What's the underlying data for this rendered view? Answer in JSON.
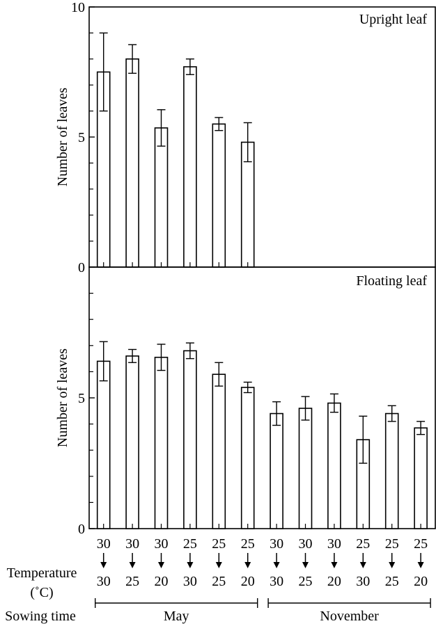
{
  "chart_data": [
    {
      "type": "bar",
      "panel": "upper",
      "title": "Upright leaf",
      "ylabel": "Number of leaves",
      "ylim": [
        0,
        10
      ],
      "yticks": [
        0,
        5,
        10
      ],
      "yticks_minor": [
        1,
        2,
        3,
        4,
        6,
        7,
        8,
        9
      ],
      "categories": [
        "30→30",
        "30→25",
        "30→20",
        "25→30",
        "25→25",
        "25→20"
      ],
      "values": [
        7.5,
        8.0,
        5.35,
        7.7,
        5.5,
        4.8
      ],
      "error": [
        1.5,
        0.55,
        0.7,
        0.3,
        0.25,
        0.75
      ]
    },
    {
      "type": "bar",
      "panel": "lower",
      "title": "Floating leaf",
      "ylabel": "Number of leaves",
      "ylim": [
        0,
        10
      ],
      "yticks": [
        0,
        5
      ],
      "yticks_minor": [
        1,
        2,
        3,
        4,
        6,
        7,
        8,
        9
      ],
      "categories": [
        "30→30",
        "30→25",
        "30→20",
        "25→30",
        "25→25",
        "25→20",
        "30→30",
        "30→25",
        "30→20",
        "25→30",
        "25→25",
        "25→20"
      ],
      "values": [
        6.4,
        6.6,
        6.55,
        6.8,
        5.9,
        5.4,
        4.4,
        4.6,
        4.8,
        3.4,
        4.4,
        3.85
      ],
      "error": [
        0.75,
        0.25,
        0.5,
        0.3,
        0.45,
        0.2,
        0.45,
        0.45,
        0.35,
        0.9,
        0.3,
        0.25
      ]
    }
  ],
  "axis": {
    "temp_from": [
      "30",
      "30",
      "30",
      "25",
      "25",
      "25",
      "30",
      "30",
      "30",
      "25",
      "25",
      "25"
    ],
    "temp_to": [
      "30",
      "25",
      "20",
      "30",
      "25",
      "20",
      "30",
      "25",
      "20",
      "30",
      "25",
      "20"
    ],
    "temperature_label": "Temperature",
    "temperature_unit": "(˚C)",
    "sowing_label": "Sowing time",
    "groups": [
      {
        "label": "May",
        "first": 0,
        "last": 5
      },
      {
        "label": "November",
        "first": 6,
        "last": 11
      }
    ]
  }
}
